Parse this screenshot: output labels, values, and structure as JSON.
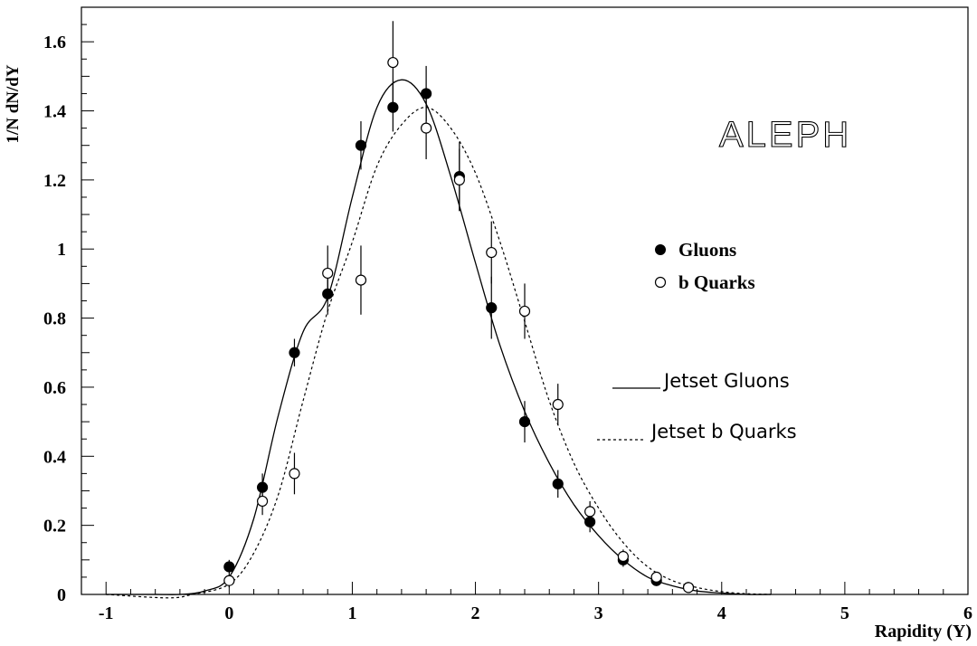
{
  "chart_data": {
    "type": "scatter",
    "title": "",
    "xlabel": "Rapidity (Y)",
    "ylabel": "1/N dN/dY",
    "xlim": [
      -1.2,
      6
    ],
    "ylim": [
      0,
      1.7
    ],
    "x_ticks": [
      -1,
      0,
      1,
      2,
      3,
      4,
      5,
      6
    ],
    "y_ticks": [
      0,
      0.2,
      0.4,
      0.6,
      0.8,
      1,
      1.2,
      1.4,
      1.6
    ],
    "x_tick_labels": [
      "-1",
      "0",
      "1",
      "2",
      "3",
      "4",
      "5",
      "6"
    ],
    "y_tick_labels": [
      "0",
      "0.2",
      "0.4",
      "0.6",
      "0.8",
      "1",
      "1.2",
      "1.4",
      "1.6"
    ],
    "grid": false,
    "experiment_label": "ALEPH",
    "legend_placement": "right",
    "series": [
      {
        "name": "Gluons",
        "marker": "filled-circle",
        "x": [
          0.0,
          0.27,
          0.53,
          0.8,
          1.07,
          1.33,
          1.6,
          1.87,
          2.13,
          2.4,
          2.67,
          2.93,
          3.2,
          3.47,
          3.73
        ],
        "y": [
          0.08,
          0.31,
          0.7,
          0.87,
          1.3,
          1.41,
          1.45,
          1.21,
          0.83,
          0.5,
          0.32,
          0.21,
          0.1,
          0.04,
          0.02
        ],
        "err": [
          0.02,
          0.04,
          0.04,
          0.06,
          0.07,
          0.07,
          0.08,
          0.1,
          0.09,
          0.06,
          0.04,
          0.03,
          0.02,
          0.01,
          0.01
        ]
      },
      {
        "name": "b Quarks",
        "marker": "open-circle",
        "x": [
          0.0,
          0.27,
          0.53,
          0.8,
          1.07,
          1.33,
          1.6,
          1.87,
          2.13,
          2.4,
          2.67,
          2.93,
          3.2,
          3.47,
          3.73
        ],
        "y": [
          0.04,
          0.27,
          0.35,
          0.93,
          0.91,
          1.54,
          1.35,
          1.2,
          0.99,
          0.82,
          0.55,
          0.24,
          0.11,
          0.05,
          0.02
        ],
        "err": [
          0.02,
          0.04,
          0.06,
          0.08,
          0.1,
          0.12,
          0.09,
          0.09,
          0.09,
          0.08,
          0.06,
          0.03,
          0.02,
          0.01,
          0.01
        ]
      },
      {
        "name": "Jetset Gluons",
        "style": "solid-line",
        "x": [
          -1.0,
          -0.6,
          -0.4,
          -0.2,
          0.0,
          0.2,
          0.4,
          0.6,
          0.8,
          1.0,
          1.2,
          1.4,
          1.6,
          1.8,
          2.0,
          2.2,
          2.4,
          2.6,
          2.8,
          3.0,
          3.2,
          3.4,
          3.6,
          3.8,
          4.0,
          4.2,
          4.4
        ],
        "y": [
          0.0,
          0.0,
          0.0,
          0.01,
          0.05,
          0.22,
          0.52,
          0.76,
          0.86,
          1.15,
          1.41,
          1.49,
          1.42,
          1.21,
          0.96,
          0.72,
          0.53,
          0.38,
          0.26,
          0.17,
          0.1,
          0.05,
          0.025,
          0.01,
          0.004,
          0.0,
          0.0
        ]
      },
      {
        "name": "Jetset b Quarks",
        "style": "dashed-line",
        "x": [
          -1.0,
          -0.5,
          -0.3,
          0.0,
          0.2,
          0.4,
          0.6,
          0.8,
          1.0,
          1.2,
          1.4,
          1.6,
          1.8,
          2.0,
          2.2,
          2.4,
          2.6,
          2.8,
          3.0,
          3.2,
          3.4,
          3.6,
          3.8,
          4.0,
          4.2,
          4.4
        ],
        "y": [
          0.0,
          -0.01,
          0.0,
          0.03,
          0.12,
          0.29,
          0.56,
          0.82,
          1.02,
          1.24,
          1.36,
          1.41,
          1.35,
          1.22,
          1.02,
          0.79,
          0.56,
          0.38,
          0.25,
          0.15,
          0.08,
          0.04,
          0.02,
          0.008,
          0.002,
          0.0
        ]
      }
    ]
  }
}
